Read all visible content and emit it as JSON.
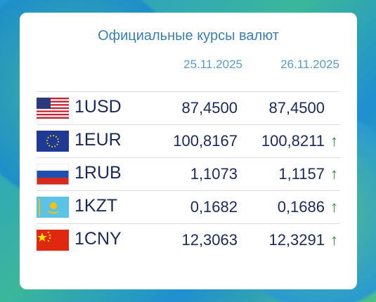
{
  "header": {
    "title": "Официальные курсы валют"
  },
  "table": {
    "columns": [
      "25.11.2025",
      "26.11.2025"
    ],
    "rows": [
      {
        "code": "1USD",
        "values": [
          "87,4500",
          "87,4500"
        ]
      },
      {
        "code": "1EUR",
        "values": [
          "100,8167",
          "100,8211"
        ],
        "arrow": "↑"
      },
      {
        "code": "1RUB",
        "values": [
          "1,1073",
          "1,1157"
        ],
        "arrow": "↑"
      },
      {
        "code": "1KZT",
        "values": [
          "0,1682",
          "0,1686"
        ],
        "arrow": "↑"
      },
      {
        "code": "1CNY",
        "values": [
          "12,3063",
          "12,3291"
        ],
        "arrow": "↑"
      }
    ]
  }
}
